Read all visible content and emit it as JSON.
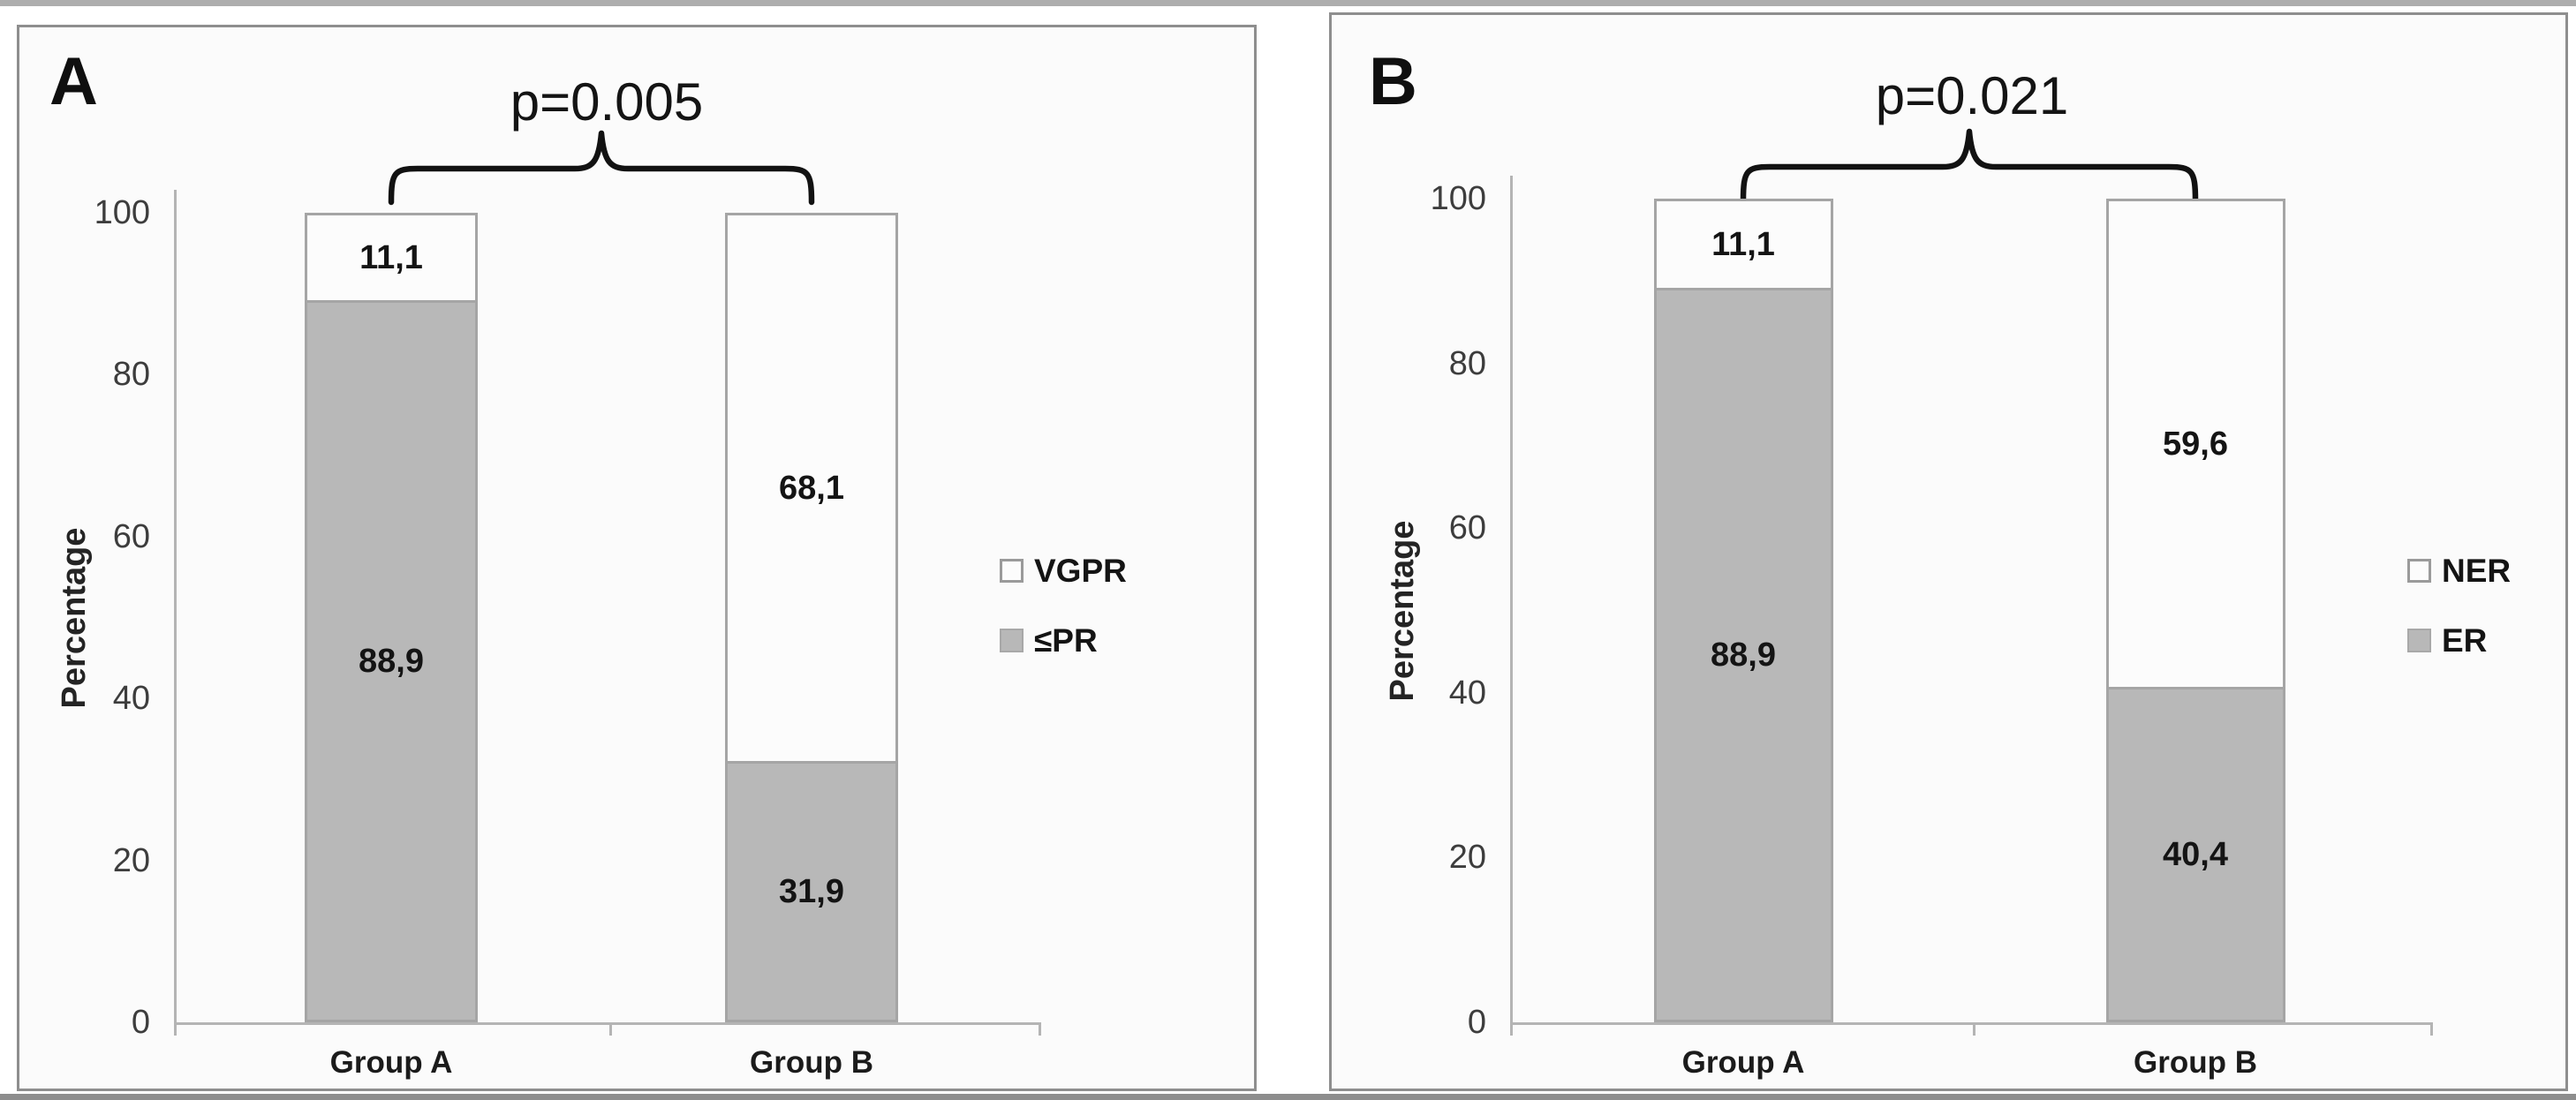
{
  "chart_data": [
    {
      "type": "bar",
      "stacked": true,
      "panel_label": "A",
      "p_label": "p=0.005",
      "categories": [
        "Group A",
        "Group B"
      ],
      "series": [
        {
          "name": "≤PR",
          "fill": "#b8b8b8",
          "values": [
            88.9,
            31.9
          ],
          "labels": [
            "88,9",
            "31,9"
          ]
        },
        {
          "name": "VGPR",
          "fill": "#fcfcfc",
          "values": [
            11.1,
            68.1
          ],
          "labels": [
            "11,1",
            "68,1"
          ]
        }
      ],
      "ylabel": "Percentage",
      "ylim": [
        0,
        100
      ],
      "y_ticks": [
        100,
        80,
        60,
        40,
        20,
        0
      ],
      "legend_position": "right",
      "grid": false
    },
    {
      "type": "bar",
      "stacked": true,
      "panel_label": "B",
      "p_label": "p=0.021",
      "categories": [
        "Group A",
        "Group B"
      ],
      "series": [
        {
          "name": "ER",
          "fill": "#b8b8b8",
          "values": [
            88.9,
            40.4
          ],
          "labels": [
            "88,9",
            "40,4"
          ]
        },
        {
          "name": "NER",
          "fill": "#fcfcfc",
          "values": [
            11.1,
            59.6
          ],
          "labels": [
            "11,1",
            "59,6"
          ]
        }
      ],
      "ylabel": "Percentage",
      "ylim": [
        0,
        100
      ],
      "y_ticks": [
        100,
        80,
        60,
        40,
        20,
        0
      ],
      "legend_position": "right",
      "grid": false
    }
  ],
  "colors": {
    "bar_gray": "#b8b8b8",
    "bar_white": "#fcfcfc",
    "bar_outline": "#a5a5a5",
    "axis": "#b4b4b4",
    "panel_border": "#8e8e8e",
    "text": "#141414"
  }
}
